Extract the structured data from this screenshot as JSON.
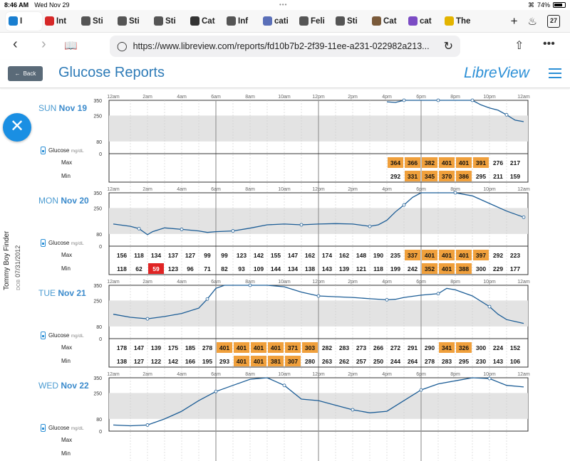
{
  "status": {
    "time": "8:46 AM",
    "date": "Wed Nov 29",
    "battery": "74%"
  },
  "tabs": [
    {
      "label": "I",
      "icon": "libreview-favicon",
      "color": "#1a7fd0",
      "active": true
    },
    {
      "label": "Int",
      "icon": "aarp-favicon",
      "color": "#d62828"
    },
    {
      "label": "Sti",
      "icon": "cat-favicon",
      "color": "#555"
    },
    {
      "label": "Sti",
      "icon": "cat-favicon",
      "color": "#555"
    },
    {
      "label": "Sti",
      "icon": "cat-favicon",
      "color": "#555"
    },
    {
      "label": "Cat",
      "icon": "spider-favicon",
      "color": "#333"
    },
    {
      "label": "Inf",
      "icon": "cat-favicon",
      "color": "#555"
    },
    {
      "label": "cati",
      "icon": "ca-favicon",
      "color": "#5a6fb8"
    },
    {
      "label": "Feli",
      "icon": "cat-favicon",
      "color": "#555"
    },
    {
      "label": "Sti",
      "icon": "cat-favicon",
      "color": "#555"
    },
    {
      "label": "Cat",
      "icon": "cat-favicon",
      "color": "#7a5a3a"
    },
    {
      "label": "cat",
      "icon": "ca-favicon",
      "color": "#7b4bc4"
    },
    {
      "label": "The",
      "icon": "the-favicon",
      "color": "#e3b400"
    }
  ],
  "tab_count": "27",
  "url": "https://www.libreview.com/reports/fd10b7b2-2f39-11ee-a231-022982a213...",
  "app": {
    "back_label": "Back",
    "title": "Glucose Reports",
    "brand": "LibreView"
  },
  "patient": {
    "name": "Tommy Boy Finder",
    "dob_label": "DOB",
    "dob": "07/31/2012"
  },
  "legend": {
    "glucose": "Glucose",
    "unit": "mg/dL",
    "max": "Max",
    "min": "Min"
  },
  "time_labels": [
    "12am",
    "2am",
    "4am",
    "6am",
    "8am",
    "10am",
    "12pm",
    "2pm",
    "4pm",
    "6pm",
    "8pm",
    "10pm",
    "12am"
  ],
  "y_labels": [
    "350",
    "250",
    "80",
    "0"
  ],
  "colors": {
    "line": "#1c5d96",
    "band": "#e3e3e3",
    "high": "#f0a03c",
    "low": "#e02424"
  },
  "days": [
    {
      "dow": "SUN",
      "date": "Nov 19",
      "max": [
        "",
        "",
        "",
        "",
        "",
        "",
        "",
        "",
        "",
        "",
        "",
        "",
        "",
        "",
        "",
        "",
        "364",
        "366",
        "382",
        "401",
        "401",
        "391",
        "276",
        "217"
      ],
      "min": [
        "",
        "",
        "",
        "",
        "",
        "",
        "",
        "",
        "",
        "",
        "",
        "",
        "",
        "",
        "",
        "",
        "292",
        "331",
        "345",
        "370",
        "386",
        "295",
        "211",
        "159"
      ],
      "max_flag": [
        0,
        0,
        0,
        0,
        0,
        0,
        0,
        0,
        0,
        0,
        0,
        0,
        0,
        0,
        0,
        0,
        1,
        1,
        1,
        1,
        1,
        1,
        0,
        0
      ],
      "min_flag": [
        0,
        0,
        0,
        0,
        0,
        0,
        0,
        0,
        0,
        0,
        0,
        0,
        0,
        0,
        0,
        0,
        0,
        1,
        1,
        1,
        1,
        0,
        0,
        0
      ],
      "curve": [
        [
          16,
          340
        ],
        [
          16.5,
          336
        ],
        [
          17,
          352
        ],
        [
          17.5,
          358
        ],
        [
          18,
          355
        ],
        [
          18.5,
          350
        ],
        [
          19,
          356
        ],
        [
          19.5,
          352
        ],
        [
          20,
          355
        ],
        [
          20.5,
          352
        ],
        [
          21,
          350
        ],
        [
          21.5,
          320
        ],
        [
          22,
          300
        ],
        [
          22.5,
          285
        ],
        [
          23,
          255
        ],
        [
          23.5,
          220
        ],
        [
          24,
          210
        ]
      ]
    },
    {
      "dow": "MON",
      "date": "Nov 20",
      "max": [
        "156",
        "118",
        "134",
        "137",
        "127",
        "99",
        "99",
        "123",
        "142",
        "155",
        "147",
        "162",
        "174",
        "162",
        "148",
        "190",
        "235",
        "337",
        "401",
        "401",
        "401",
        "397",
        "292",
        "223"
      ],
      "min": [
        "118",
        "62",
        "59",
        "123",
        "96",
        "71",
        "82",
        "93",
        "109",
        "144",
        "134",
        "138",
        "143",
        "139",
        "121",
        "118",
        "199",
        "242",
        "352",
        "401",
        "388",
        "300",
        "229",
        "177"
      ],
      "max_flag": [
        0,
        0,
        0,
        0,
        0,
        0,
        0,
        0,
        0,
        0,
        0,
        0,
        0,
        0,
        0,
        0,
        0,
        1,
        1,
        1,
        1,
        1,
        0,
        0
      ],
      "min_flag": [
        0,
        0,
        2,
        0,
        0,
        0,
        0,
        0,
        0,
        0,
        0,
        0,
        0,
        0,
        0,
        0,
        0,
        0,
        1,
        1,
        1,
        0,
        0,
        0
      ],
      "curve": [
        [
          0,
          145
        ],
        [
          1,
          130
        ],
        [
          1.5,
          115
        ],
        [
          2,
          75
        ],
        [
          2.3,
          95
        ],
        [
          3,
          120
        ],
        [
          4,
          110
        ],
        [
          5,
          100
        ],
        [
          5.5,
          90
        ],
        [
          6,
          95
        ],
        [
          7,
          100
        ],
        [
          8,
          118
        ],
        [
          9,
          140
        ],
        [
          10,
          145
        ],
        [
          11,
          140
        ],
        [
          12,
          145
        ],
        [
          13,
          148
        ],
        [
          14,
          145
        ],
        [
          15,
          130
        ],
        [
          15.5,
          140
        ],
        [
          16,
          170
        ],
        [
          16.5,
          225
        ],
        [
          17,
          270
        ],
        [
          17.5,
          320
        ],
        [
          18,
          352
        ],
        [
          19,
          355
        ],
        [
          20,
          356
        ],
        [
          21,
          330
        ],
        [
          22,
          280
        ],
        [
          23,
          230
        ],
        [
          24,
          190
        ]
      ]
    },
    {
      "dow": "TUE",
      "date": "Nov 21",
      "max": [
        "178",
        "147",
        "139",
        "175",
        "185",
        "278",
        "401",
        "401",
        "401",
        "401",
        "371",
        "303",
        "282",
        "283",
        "273",
        "266",
        "272",
        "291",
        "290",
        "341",
        "326",
        "300",
        "224",
        "152"
      ],
      "min": [
        "138",
        "127",
        "122",
        "142",
        "166",
        "195",
        "293",
        "401",
        "401",
        "381",
        "307",
        "280",
        "263",
        "262",
        "257",
        "250",
        "244",
        "264",
        "278",
        "283",
        "295",
        "230",
        "143",
        "106"
      ],
      "max_flag": [
        0,
        0,
        0,
        0,
        0,
        0,
        1,
        1,
        1,
        1,
        1,
        1,
        0,
        0,
        0,
        0,
        0,
        0,
        0,
        1,
        1,
        0,
        0,
        0
      ],
      "min_flag": [
        0,
        0,
        0,
        0,
        0,
        0,
        0,
        1,
        1,
        1,
        1,
        0,
        0,
        0,
        0,
        0,
        0,
        0,
        0,
        0,
        0,
        0,
        0,
        0
      ],
      "curve": [
        [
          0,
          160
        ],
        [
          1,
          140
        ],
        [
          2,
          130
        ],
        [
          3,
          145
        ],
        [
          4,
          165
        ],
        [
          5,
          200
        ],
        [
          5.5,
          260
        ],
        [
          6,
          330
        ],
        [
          6.5,
          355
        ],
        [
          7,
          356
        ],
        [
          8,
          354
        ],
        [
          9,
          355
        ],
        [
          10,
          340
        ],
        [
          11,
          305
        ],
        [
          12,
          280
        ],
        [
          13,
          275
        ],
        [
          14,
          270
        ],
        [
          15,
          262
        ],
        [
          16,
          255
        ],
        [
          16.5,
          258
        ],
        [
          17,
          270
        ],
        [
          18,
          285
        ],
        [
          19,
          295
        ],
        [
          19.5,
          330
        ],
        [
          20,
          320
        ],
        [
          21,
          280
        ],
        [
          22,
          210
        ],
        [
          22.5,
          160
        ],
        [
          23,
          125
        ],
        [
          24,
          100
        ]
      ]
    },
    {
      "dow": "WED",
      "date": "Nov 22",
      "max": [],
      "min": [],
      "max_flag": [],
      "min_flag": [],
      "curve": [
        [
          0,
          40
        ],
        [
          1,
          35
        ],
        [
          2,
          40
        ],
        [
          3,
          80
        ],
        [
          4,
          130
        ],
        [
          5,
          200
        ],
        [
          6,
          260
        ],
        [
          7,
          300
        ],
        [
          8,
          340
        ],
        [
          9,
          355
        ],
        [
          10,
          300
        ],
        [
          11,
          210
        ],
        [
          12,
          200
        ],
        [
          13,
          170
        ],
        [
          14,
          140
        ],
        [
          15,
          120
        ],
        [
          16,
          130
        ],
        [
          17,
          200
        ],
        [
          18,
          270
        ],
        [
          19,
          310
        ],
        [
          20,
          330
        ],
        [
          21,
          350
        ],
        [
          22,
          345
        ],
        [
          23,
          300
        ],
        [
          24,
          290
        ]
      ]
    }
  ]
}
